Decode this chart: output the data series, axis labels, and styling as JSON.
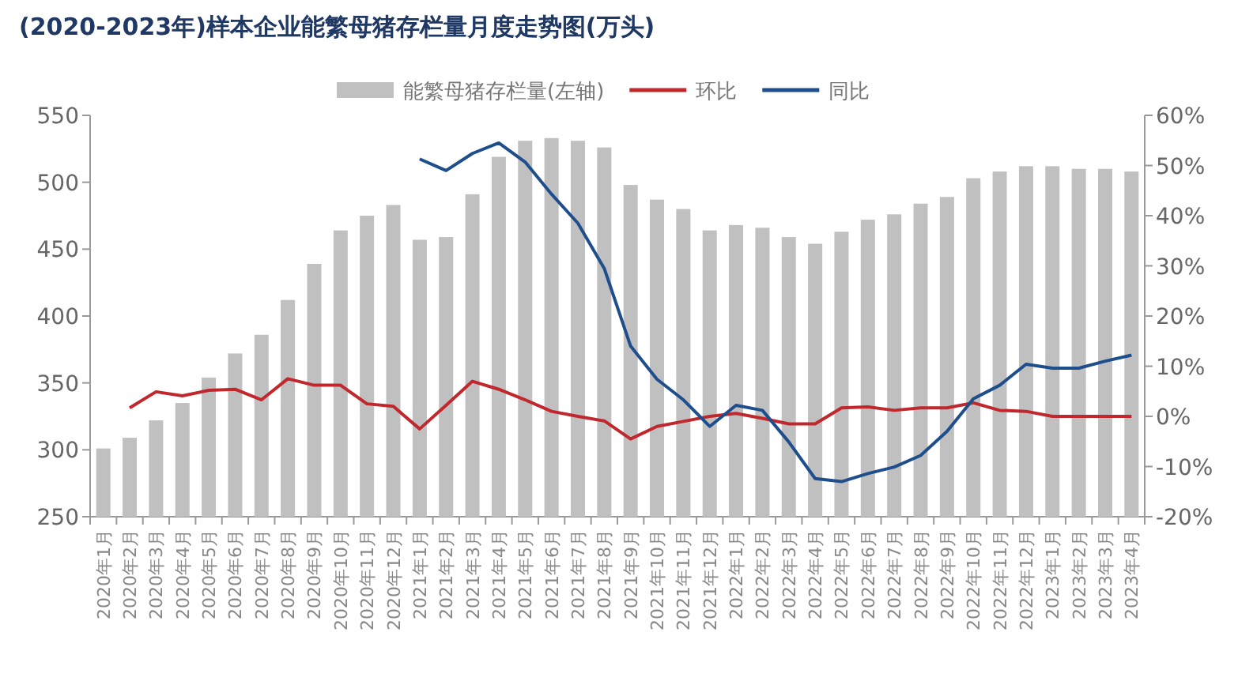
{
  "chart_data": {
    "type": "bar",
    "title": "(2020-2023年)样本企业能繁母猪存栏量月度走势图(万头)",
    "legend": "top",
    "categories": [
      "2020年1月",
      "2020年2月",
      "2020年3月",
      "2020年4月",
      "2020年5月",
      "2020年6月",
      "2020年7月",
      "2020年8月",
      "2020年9月",
      "2020年10月",
      "2020年11月",
      "2020年12月",
      "2021年1月",
      "2021年2月",
      "2021年3月",
      "2021年4月",
      "2021年5月",
      "2021年6月",
      "2021年7月",
      "2021年8月",
      "2021年9月",
      "2021年10月",
      "2021年11月",
      "2021年12月",
      "2022年1月",
      "2022年2月",
      "2022年3月",
      "2022年4月",
      "2022年5月",
      "2022年6月",
      "2022年7月",
      "2022年8月",
      "2022年9月",
      "2022年10月",
      "2022年11月",
      "2022年12月",
      "2023年1月",
      "2023年2月",
      "2023年3月",
      "2023年4月"
    ],
    "series": [
      {
        "name": "能繁母猪存栏量(左轴)",
        "axis": "y",
        "color": "#c0c0c0",
        "values": [
          301,
          309,
          322,
          335,
          354,
          372,
          386,
          412,
          439,
          464,
          475,
          483,
          457,
          459,
          491,
          519,
          531,
          533,
          531,
          526,
          498,
          487,
          480,
          464,
          468,
          466,
          459,
          454,
          463,
          472,
          476,
          484,
          489,
          503,
          508,
          512,
          512,
          510,
          510,
          508
        ]
      },
      {
        "name": "环比",
        "type": "line",
        "axis": "y2",
        "color": "#c0282d",
        "values": [
          null,
          1.7,
          4.9,
          4.1,
          5.2,
          5.4,
          3.3,
          7.5,
          6.2,
          6.2,
          2.5,
          2,
          -2.5,
          2.2,
          7,
          5.4,
          3.3,
          1,
          0,
          -0.9,
          -4.5,
          -2,
          -1,
          0,
          0.6,
          -0.4,
          -1.5,
          -1.5,
          1.7,
          1.9,
          1.2,
          1.7,
          1.7,
          2.7,
          1.2,
          1,
          0,
          0,
          0,
          0
        ]
      },
      {
        "name": "同比",
        "type": "line",
        "axis": "y2",
        "color": "#1f4e8c",
        "values": [
          null,
          null,
          null,
          null,
          null,
          null,
          null,
          null,
          null,
          null,
          null,
          null,
          51.3,
          49,
          52.4,
          54.5,
          50.7,
          44.3,
          38.5,
          29.5,
          14,
          7.4,
          3.3,
          -2,
          2.2,
          1.2,
          -5.1,
          -12.4,
          -13,
          -11.4,
          -10.1,
          -7.8,
          -3,
          3.5,
          6.2,
          10.4,
          9.6,
          9.6,
          11,
          12.2
        ]
      }
    ],
    "ylim": [
      250,
      550
    ],
    "yticks": [
      250,
      300,
      350,
      400,
      450,
      500,
      550
    ],
    "y2lim": [
      -20,
      60
    ],
    "y2ticks": [
      {
        "value": -20,
        "label": "-20%"
      },
      {
        "value": -10,
        "label": "-10%"
      },
      {
        "value": 0,
        "label": "0%"
      },
      {
        "value": 10,
        "label": "10%"
      },
      {
        "value": 20,
        "label": "20%"
      },
      {
        "value": 30,
        "label": "30%"
      },
      {
        "value": 40,
        "label": "40%"
      },
      {
        "value": 50,
        "label": "50%"
      },
      {
        "value": 60,
        "label": "60%"
      }
    ]
  }
}
